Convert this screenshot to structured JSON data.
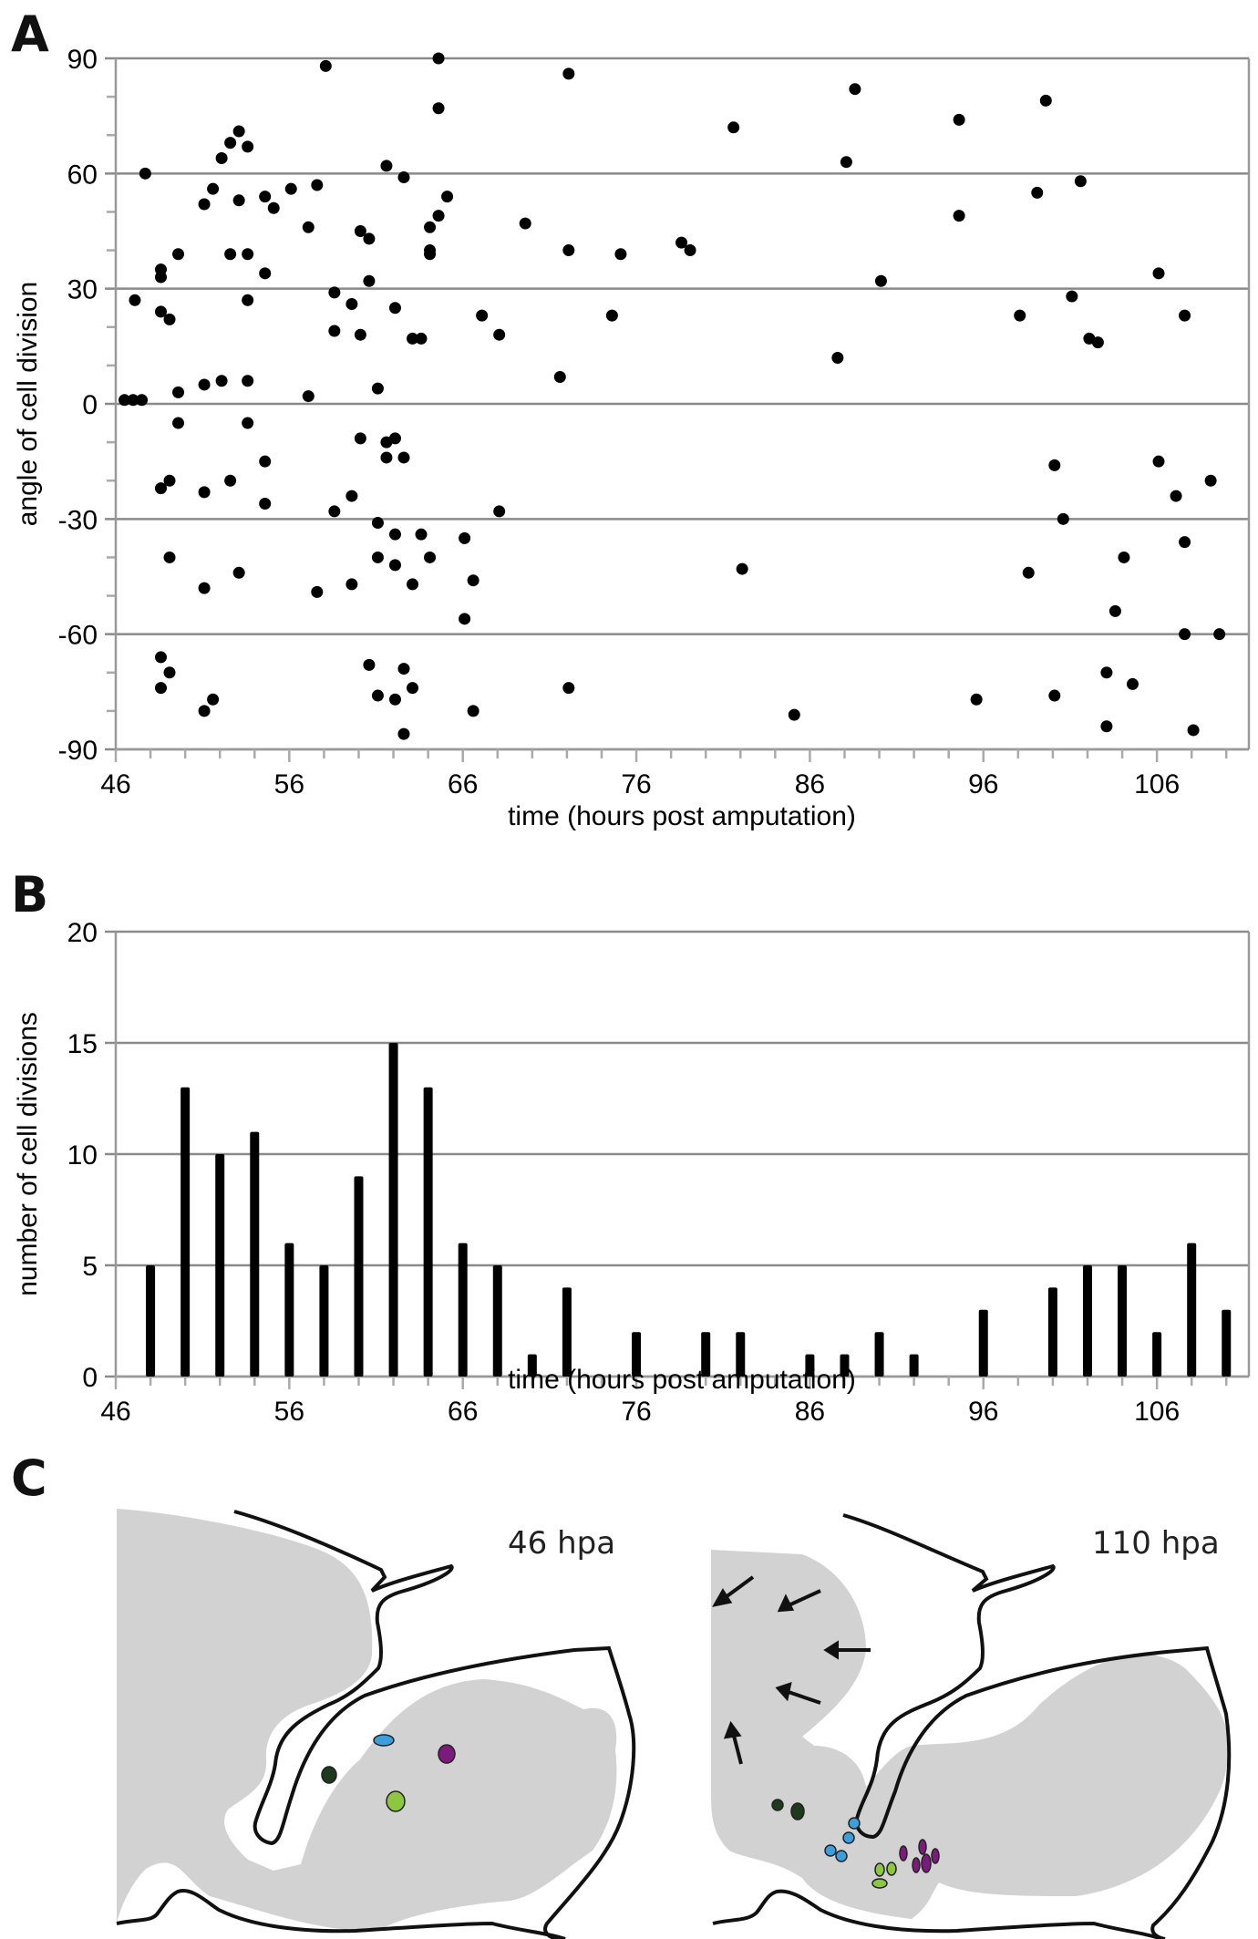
{
  "panels": {
    "a_label": "A",
    "b_label": "B",
    "c_label": "C"
  },
  "chart_data": [
    {
      "id": "A",
      "type": "scatter",
      "title": "",
      "xlabel": "time (hours post amputation)",
      "ylabel": "angle of cell division",
      "xlim": [
        46,
        111.3
      ],
      "ylim": [
        -90,
        90
      ],
      "xticks": [
        46,
        56,
        66,
        76,
        86,
        96,
        106
      ],
      "xminor_step": 2,
      "yticks": [
        -90,
        -60,
        -30,
        0,
        30,
        60,
        90
      ],
      "yminor_step": 10,
      "grid": "horizontal at major y ticks",
      "marker_color": "#000000",
      "points": [
        [
          46.5,
          1
        ],
        [
          47.0,
          1
        ],
        [
          47.5,
          1
        ],
        [
          47.1,
          27
        ],
        [
          47.7,
          60
        ],
        [
          48.6,
          35
        ],
        [
          48.6,
          33
        ],
        [
          48.6,
          24
        ],
        [
          49.1,
          22
        ],
        [
          48.6,
          -22
        ],
        [
          48.6,
          -66
        ],
        [
          48.6,
          -74
        ],
        [
          49.1,
          -70
        ],
        [
          49.1,
          -20
        ],
        [
          49.1,
          -40
        ],
        [
          49.6,
          39
        ],
        [
          49.6,
          3
        ],
        [
          49.6,
          -5
        ],
        [
          51.1,
          52
        ],
        [
          51.6,
          56
        ],
        [
          51.1,
          5
        ],
        [
          51.1,
          -23
        ],
        [
          51.1,
          -48
        ],
        [
          51.1,
          -80
        ],
        [
          51.6,
          -77
        ],
        [
          52.1,
          64
        ],
        [
          52.6,
          68
        ],
        [
          53.1,
          71
        ],
        [
          53.6,
          67
        ],
        [
          52.1,
          6
        ],
        [
          52.6,
          39
        ],
        [
          52.6,
          -20
        ],
        [
          53.1,
          53
        ],
        [
          53.6,
          39
        ],
        [
          53.6,
          27
        ],
        [
          53.6,
          6
        ],
        [
          53.6,
          -5
        ],
        [
          53.1,
          -44
        ],
        [
          54.6,
          54
        ],
        [
          55.1,
          51
        ],
        [
          54.6,
          34
        ],
        [
          54.6,
          -15
        ],
        [
          54.6,
          -26
        ],
        [
          56.1,
          56
        ],
        [
          57.1,
          46
        ],
        [
          57.1,
          2
        ],
        [
          57.6,
          57
        ],
        [
          57.6,
          -49
        ],
        [
          58.1,
          88
        ],
        [
          58.6,
          29
        ],
        [
          58.6,
          19
        ],
        [
          58.6,
          -28
        ],
        [
          59.6,
          26
        ],
        [
          59.6,
          -24
        ],
        [
          59.6,
          -47
        ],
        [
          60.1,
          45
        ],
        [
          60.1,
          18
        ],
        [
          60.1,
          -9
        ],
        [
          60.6,
          43
        ],
        [
          60.6,
          32
        ],
        [
          60.6,
          -68
        ],
        [
          61.1,
          4
        ],
        [
          61.1,
          -31
        ],
        [
          61.1,
          -40
        ],
        [
          61.1,
          -76
        ],
        [
          61.6,
          62
        ],
        [
          61.6,
          -10
        ],
        [
          61.6,
          -14
        ],
        [
          62.1,
          25
        ],
        [
          62.1,
          -9
        ],
        [
          62.1,
          -34
        ],
        [
          62.1,
          -42
        ],
        [
          62.1,
          -77
        ],
        [
          62.6,
          59
        ],
        [
          62.6,
          -14
        ],
        [
          62.6,
          -69
        ],
        [
          62.6,
          -86
        ],
        [
          63.1,
          17
        ],
        [
          63.1,
          -47
        ],
        [
          63.1,
          -74
        ],
        [
          63.6,
          17
        ],
        [
          63.6,
          -34
        ],
        [
          64.1,
          46
        ],
        [
          64.1,
          40
        ],
        [
          64.1,
          39
        ],
        [
          64.1,
          -40
        ],
        [
          64.6,
          90
        ],
        [
          64.6,
          77
        ],
        [
          64.6,
          49
        ],
        [
          65.1,
          54
        ],
        [
          66.1,
          -35
        ],
        [
          66.1,
          -56
        ],
        [
          66.6,
          -46
        ],
        [
          66.6,
          -80
        ],
        [
          67.1,
          23
        ],
        [
          68.1,
          18
        ],
        [
          68.1,
          -28
        ],
        [
          69.6,
          47
        ],
        [
          71.6,
          7
        ],
        [
          72.1,
          86
        ],
        [
          72.1,
          40
        ],
        [
          72.1,
          -74
        ],
        [
          74.6,
          23
        ],
        [
          75.1,
          39
        ],
        [
          78.6,
          42
        ],
        [
          79.1,
          40
        ],
        [
          81.6,
          72
        ],
        [
          82.1,
          -43
        ],
        [
          85.1,
          -81
        ],
        [
          87.6,
          12
        ],
        [
          88.1,
          63
        ],
        [
          88.6,
          82
        ],
        [
          90.1,
          32
        ],
        [
          94.6,
          74
        ],
        [
          94.6,
          49
        ],
        [
          95.6,
          -77
        ],
        [
          98.1,
          23
        ],
        [
          98.6,
          -44
        ],
        [
          99.1,
          55
        ],
        [
          99.6,
          79
        ],
        [
          100.1,
          -16
        ],
        [
          100.1,
          -76
        ],
        [
          100.6,
          -30
        ],
        [
          101.1,
          28
        ],
        [
          101.6,
          58
        ],
        [
          102.1,
          17
        ],
        [
          102.6,
          16
        ],
        [
          103.1,
          -70
        ],
        [
          103.1,
          -84
        ],
        [
          103.6,
          -54
        ],
        [
          104.1,
          -40
        ],
        [
          104.6,
          -73
        ],
        [
          106.1,
          34
        ],
        [
          106.1,
          -15
        ],
        [
          107.1,
          -24
        ],
        [
          107.6,
          23
        ],
        [
          107.6,
          -36
        ],
        [
          107.6,
          -60
        ],
        [
          108.1,
          -85
        ],
        [
          109.1,
          -20
        ],
        [
          109.6,
          -60
        ]
      ]
    },
    {
      "id": "B",
      "type": "bar",
      "title": "",
      "xlabel": "time (hours post amputation)",
      "ylabel": "number of cell divisions",
      "xlim": [
        46,
        111.3
      ],
      "ylim": [
        0,
        20
      ],
      "xticks": [
        46,
        56,
        66,
        76,
        86,
        96,
        106
      ],
      "xminor_step": 2,
      "yticks": [
        0,
        5,
        10,
        15,
        20
      ],
      "grid": "horizontal at major y ticks",
      "bar_color": "#000000",
      "x": [
        48,
        50,
        52,
        54,
        56,
        58,
        60,
        62,
        64,
        66,
        68,
        70,
        72,
        74,
        76,
        78,
        80,
        82,
        84,
        86,
        88,
        90,
        92,
        94,
        96,
        98,
        100,
        102,
        104,
        106,
        108,
        110
      ],
      "values": [
        5,
        13,
        10,
        11,
        6,
        5,
        9,
        15,
        13,
        6,
        5,
        1,
        4,
        0,
        2,
        0,
        2,
        2,
        0,
        1,
        1,
        2,
        1,
        0,
        3,
        0,
        4,
        5,
        5,
        2,
        6,
        3
      ]
    }
  ],
  "diagram": {
    "left_label": "46 hpa",
    "right_label": "110 hpa",
    "tissue_color": "#d2d2d2",
    "outline_color": "#111111",
    "cell_colors": {
      "dark_green": "#1e3a1c",
      "blue": "#3a9fdc",
      "purple": "#7d1a7d",
      "light_green": "#8dc63f"
    }
  }
}
